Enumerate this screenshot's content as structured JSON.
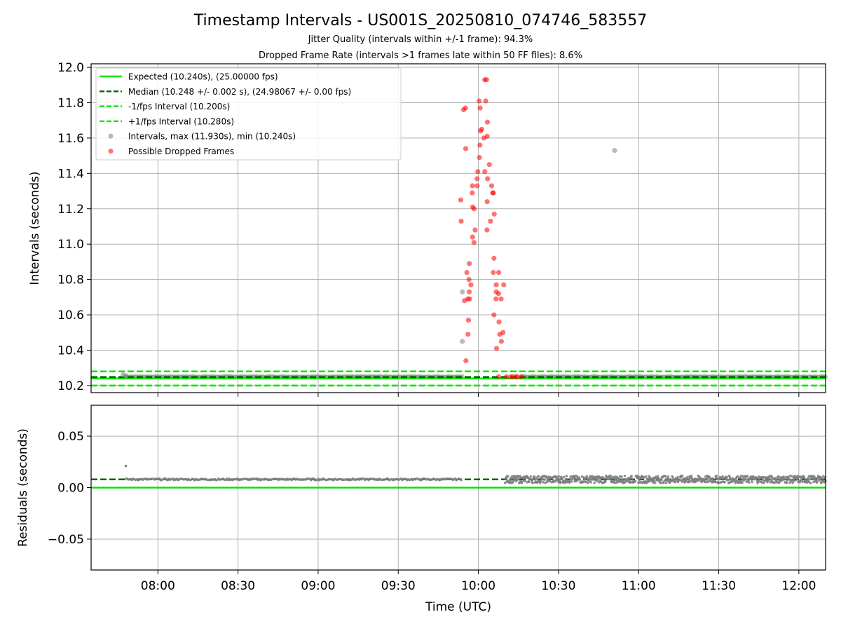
{
  "figure": {
    "title": "Timestamp Intervals - US001S_20250810_074746_583557",
    "subtitle1": "Jitter Quality (intervals within +/-1 frame): 94.3%",
    "subtitle2": "Dropped Frame Rate (intervals >1 frames late within 50 FF files): 8.6%"
  },
  "colors": {
    "expected": "#00e600",
    "median": "#006400",
    "interval_band": "#00e600",
    "normal_points": "#808080",
    "dropped_points": "#ff0000",
    "grid": "#b0b0b0"
  },
  "chart_data": [
    {
      "type": "scatter",
      "ylabel": "Intervals (seconds)",
      "xlabel": "",
      "ylim": [
        10.16,
        12.02
      ],
      "xlim": [
        "07:35",
        "12:10"
      ],
      "yticks": [
        10.2,
        10.4,
        10.6,
        10.8,
        11.0,
        11.2,
        11.4,
        11.6,
        11.8,
        12.0
      ],
      "ytick_labels": [
        "10.2",
        "10.4",
        "10.6",
        "10.8",
        "11.0",
        "11.2",
        "11.4",
        "11.6",
        "11.8",
        "12.0"
      ],
      "grid": true,
      "legend_position": "upper-left",
      "lines": [
        {
          "name": "Expected (10.240s), (25.00000 fps)",
          "y": 10.24,
          "style": "solid",
          "color": "#00e600"
        },
        {
          "name": "Median (10.248 +/- 0.002 s), (24.98067 +/- 0.00 fps)",
          "y": 10.248,
          "style": "dashed",
          "color": "#006400"
        },
        {
          "name": "-1/fps Interval (10.200s)",
          "y": 10.2,
          "style": "dashed",
          "color": "#00e600"
        },
        {
          "name": "+1/fps Interval (10.280s)",
          "y": 10.28,
          "style": "dashed",
          "color": "#00e600"
        }
      ],
      "series": [
        {
          "name": "Intervals, max (11.930s), min (10.240s)",
          "color": "#808080",
          "points": [
            [
              "07:47",
              10.26
            ],
            [
              "07:48",
              10.255
            ],
            [
              "09:54",
              10.73
            ],
            [
              "09:54",
              10.45
            ],
            [
              "10:51",
              11.53
            ]
          ]
        },
        {
          "name": "Possible Dropped Frames",
          "color": "#ff0000",
          "points": [
            [
              "09:54",
              11.76
            ],
            [
              "09:55",
              11.77
            ],
            [
              "09:55",
              11.54
            ],
            [
              "09:54",
              11.25
            ],
            [
              "09:54",
              11.13
            ],
            [
              "09:55",
              10.68
            ],
            [
              "09:56",
              10.69
            ],
            [
              "09:56",
              10.57
            ],
            [
              "09:56",
              10.49
            ],
            [
              "09:55",
              10.34
            ],
            [
              "09:56",
              10.73
            ],
            [
              "09:56",
              10.8
            ],
            [
              "09:56",
              10.84
            ],
            [
              "09:57",
              10.89
            ],
            [
              "09:57",
              10.77
            ],
            [
              "09:57",
              10.69
            ],
            [
              "09:58",
              11.01
            ],
            [
              "09:58",
              11.04
            ],
            [
              "09:58",
              11.21
            ],
            [
              "09:58",
              11.29
            ],
            [
              "09:58",
              11.33
            ],
            [
              "09:59",
              11.37
            ],
            [
              "09:59",
              11.33
            ],
            [
              "09:59",
              11.2
            ],
            [
              "09:59",
              11.08
            ],
            [
              "10:00",
              11.41
            ],
            [
              "10:00",
              11.49
            ],
            [
              "10:00",
              11.56
            ],
            [
              "10:00",
              11.81
            ],
            [
              "10:01",
              11.77
            ],
            [
              "10:01",
              11.64
            ],
            [
              "10:01",
              11.65
            ],
            [
              "10:02",
              11.6
            ],
            [
              "10:02",
              11.93
            ],
            [
              "10:03",
              11.93
            ],
            [
              "10:03",
              11.81
            ],
            [
              "10:03",
              11.69
            ],
            [
              "10:03",
              11.61
            ],
            [
              "10:02",
              11.41
            ],
            [
              "10:03",
              11.24
            ],
            [
              "10:03",
              11.08
            ],
            [
              "10:04",
              11.45
            ],
            [
              "10:04",
              11.37
            ],
            [
              "10:05",
              11.29
            ],
            [
              "10:05",
              11.29
            ],
            [
              "10:05",
              11.13
            ],
            [
              "10:05",
              11.33
            ],
            [
              "10:06",
              11.17
            ],
            [
              "10:06",
              10.92
            ],
            [
              "10:06",
              10.84
            ],
            [
              "10:06",
              10.6
            ],
            [
              "10:07",
              10.77
            ],
            [
              "10:07",
              10.73
            ],
            [
              "10:07",
              10.69
            ],
            [
              "10:08",
              10.72
            ],
            [
              "10:08",
              10.84
            ],
            [
              "10:08",
              10.56
            ],
            [
              "10:08",
              10.49
            ],
            [
              "10:07",
              10.41
            ],
            [
              "10:09",
              10.69
            ],
            [
              "10:09",
              10.5
            ],
            [
              "10:09",
              10.45
            ],
            [
              "10:10",
              10.77
            ],
            [
              "10:08",
              10.25
            ],
            [
              "10:11",
              10.25
            ],
            [
              "10:12",
              10.25
            ],
            [
              "10:13",
              10.25
            ],
            [
              "10:14",
              10.25
            ],
            [
              "10:15",
              10.25
            ],
            [
              "10:16",
              10.25
            ]
          ]
        }
      ]
    },
    {
      "type": "scatter",
      "ylabel": "Residuals (seconds)",
      "xlabel": "Time (UTC)",
      "ylim": [
        -0.08,
        0.08
      ],
      "xlim": [
        "07:35",
        "12:10"
      ],
      "yticks": [
        0.05,
        0.0,
        -0.05
      ],
      "ytick_labels": [
        "0.05",
        "0.00",
        "−0.05"
      ],
      "xticks": [
        "08:00",
        "08:30",
        "09:00",
        "09:30",
        "10:00",
        "10:30",
        "11:00",
        "11:30",
        "12:00"
      ],
      "grid": true,
      "lines": [
        {
          "y": 0.0,
          "style": "solid",
          "color": "#00e600"
        },
        {
          "y": 0.008,
          "style": "dashed",
          "color": "#006400"
        }
      ],
      "series": [
        {
          "color": "#808080",
          "segments": [
            {
              "from": "07:48",
              "to": "09:54",
              "y": 0.008,
              "spread": 0.0008
            },
            {
              "from": "10:10",
              "to": "12:10",
              "y": 0.008,
              "spread": 0.0035
            }
          ],
          "points": [
            [
              "07:48",
              0.021
            ]
          ]
        }
      ]
    }
  ]
}
